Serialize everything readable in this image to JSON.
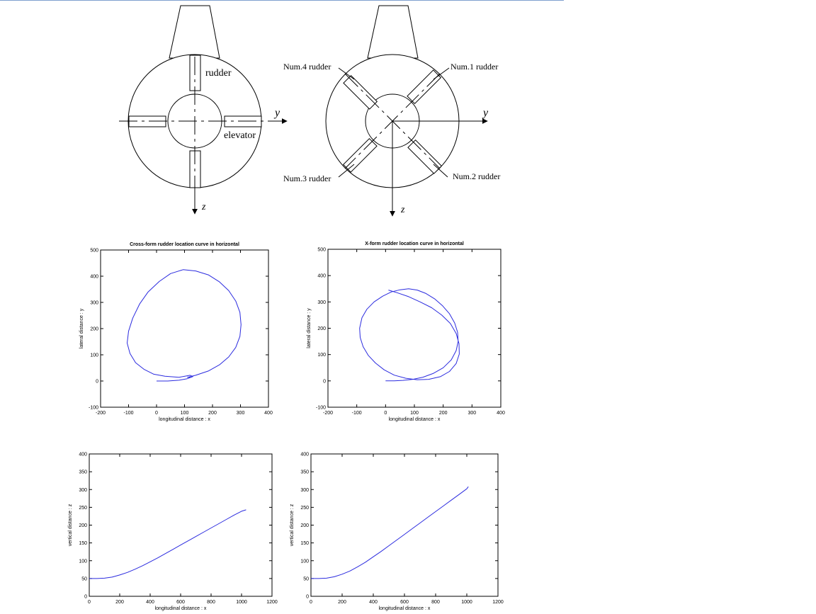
{
  "diagrams": {
    "cross": {
      "rudder_label": "rudder",
      "elevator_label": "elevator",
      "y_axis_label": "y",
      "z_axis_label": "z"
    },
    "xform": {
      "num1_label": "Num.1 rudder",
      "num2_label": "Num.2 rudder",
      "num3_label": "Num.3 rudder",
      "num4_label": "Num.4 rudder",
      "y_axis_label": "y",
      "z_axis_label": "z"
    }
  },
  "colors": {
    "curve": "#2b2bdf",
    "axis": "#000000"
  },
  "chart_data": [
    {
      "type": "line",
      "title": "Cross-form rudder location curve in horizontal",
      "xlabel": "longitudinal distance : x",
      "ylabel": "lateral distance : y",
      "xlim": [
        -200,
        400
      ],
      "ylim": [
        -100,
        500
      ],
      "xticks": [
        -200,
        -100,
        0,
        100,
        200,
        300,
        400
      ],
      "yticks": [
        -100,
        0,
        100,
        200,
        300,
        400,
        500
      ],
      "grid": false,
      "series": [
        {
          "x": [
            0,
            40,
            80,
            110,
            130,
            120,
            80,
            30,
            -10,
            -45,
            -75,
            -95,
            -105,
            -100,
            -85,
            -60,
            -30,
            10,
            50,
            95,
            140,
            185,
            225,
            258,
            283,
            298,
            302,
            298,
            283,
            258,
            225,
            185,
            140,
            110,
            125
          ],
          "y": [
            0,
            0,
            3,
            9,
            17,
            22,
            14,
            18,
            26,
            45,
            70,
            105,
            145,
            190,
            240,
            295,
            340,
            380,
            410,
            425,
            420,
            405,
            378,
            345,
            305,
            262,
            215,
            170,
            128,
            92,
            62,
            38,
            22,
            14,
            14
          ]
        }
      ]
    },
    {
      "type": "line",
      "title": "X-form rudder location curve in horizontal",
      "xlabel": "longitudinal distance : x",
      "ylabel": "lateral distance : y",
      "xlim": [
        -200,
        400
      ],
      "ylim": [
        -100,
        500
      ],
      "xticks": [
        -200,
        -100,
        0,
        100,
        200,
        300,
        400
      ],
      "yticks": [
        -100,
        0,
        100,
        200,
        300,
        400,
        500
      ],
      "grid": false,
      "series": [
        {
          "x": [
            0,
            30,
            60,
            95,
            130,
            165,
            200,
            228,
            245,
            252,
            250,
            240,
            222,
            198,
            170,
            140,
            110,
            80,
            50,
            20,
            -10,
            -40,
            -65,
            -82,
            -90,
            -88,
            -78,
            -60,
            -35,
            -5,
            30,
            70,
            110,
            150,
            190,
            222,
            245,
            256,
            255,
            245,
            225,
            195,
            160,
            120,
            80,
            40,
            10
          ],
          "y": [
            0,
            0,
            2,
            6,
            14,
            28,
            50,
            80,
            115,
            150,
            185,
            220,
            255,
            285,
            312,
            332,
            345,
            350,
            346,
            338,
            322,
            300,
            272,
            240,
            200,
            165,
            130,
            97,
            68,
            42,
            22,
            10,
            4,
            6,
            16,
            36,
            66,
            102,
            142,
            180,
            218,
            250,
            278,
            300,
            320,
            335,
            345
          ]
        }
      ]
    },
    {
      "type": "line",
      "title": "",
      "xlabel": "longitudinal distance : x",
      "ylabel": "vertical distance : z",
      "xlim": [
        0,
        1200
      ],
      "ylim": [
        0,
        400
      ],
      "xticks": [
        0,
        200,
        400,
        600,
        800,
        1000,
        1200
      ],
      "yticks": [
        0,
        50,
        100,
        150,
        200,
        250,
        300,
        350,
        400
      ],
      "grid": false,
      "series": [
        {
          "x": [
            0,
            50,
            100,
            150,
            200,
            250,
            300,
            350,
            400,
            450,
            500,
            550,
            600,
            650,
            700,
            750,
            800,
            850,
            900,
            950,
            1000,
            1030
          ],
          "y": [
            50,
            50,
            51,
            54,
            60,
            67,
            76,
            86,
            97,
            108,
            120,
            132,
            144,
            156,
            168,
            180,
            192,
            204,
            216,
            228,
            239,
            243
          ]
        }
      ]
    },
    {
      "type": "line",
      "title": "",
      "xlabel": "longitudinal distance : x",
      "ylabel": "vertical distance : z",
      "xlim": [
        0,
        1200
      ],
      "ylim": [
        0,
        400
      ],
      "xticks": [
        0,
        200,
        400,
        600,
        800,
        1000,
        1200
      ],
      "yticks": [
        0,
        50,
        100,
        150,
        200,
        250,
        300,
        350,
        400
      ],
      "grid": false,
      "series": [
        {
          "x": [
            0,
            50,
            100,
            150,
            200,
            250,
            300,
            350,
            400,
            450,
            500,
            550,
            600,
            650,
            700,
            750,
            800,
            850,
            900,
            950,
            1000,
            1010
          ],
          "y": [
            50,
            50,
            51,
            55,
            62,
            71,
            83,
            96,
            111,
            126,
            142,
            158,
            174,
            190,
            206,
            222,
            238,
            254,
            270,
            286,
            302,
            308
          ]
        }
      ]
    }
  ]
}
